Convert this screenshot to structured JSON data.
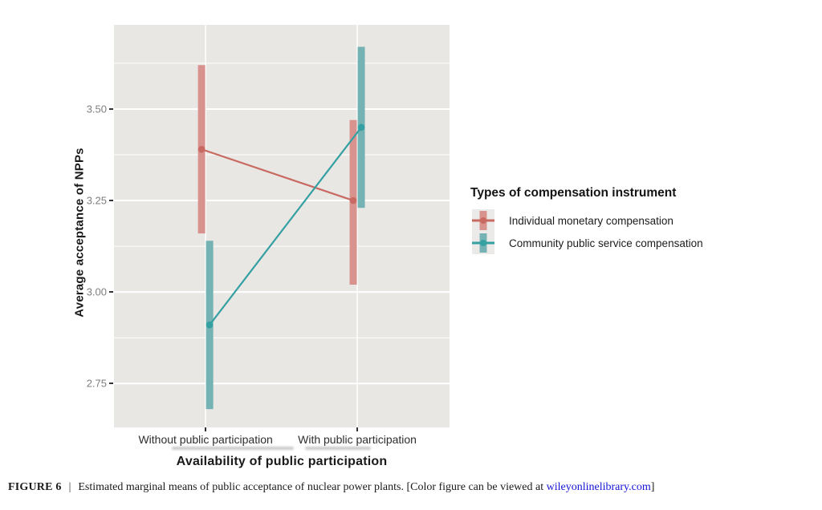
{
  "chart_data": {
    "type": "line",
    "subtype": "interaction-plot-with-error-bars",
    "categories": [
      "Without public participation",
      "With public participation"
    ],
    "series": [
      {
        "name": "Individual monetary compensation",
        "line_color": "#c96a62",
        "bar_color": "#d9938e",
        "means": [
          3.39,
          3.25
        ],
        "ci_low": [
          3.16,
          3.02
        ],
        "ci_high": [
          3.62,
          3.47
        ]
      },
      {
        "name": "Community public service compensation",
        "line_color": "#35a0a2",
        "bar_color": "#74b2b4",
        "means": [
          2.91,
          3.45
        ],
        "ci_low": [
          2.68,
          3.23
        ],
        "ci_high": [
          3.14,
          3.67
        ]
      }
    ],
    "title": "",
    "xlabel": "Availability of public participation",
    "ylabel": "Average acceptance of NPPs",
    "yticks": [
      2.75,
      3.0,
      3.25,
      3.5
    ],
    "yticks_minor": [
      2.875,
      3.125,
      3.375,
      3.625
    ],
    "ylim": [
      2.63,
      3.73
    ],
    "grid": true,
    "legend_title": "Types of compensation instrument",
    "legend_position": "right"
  },
  "ui_colors": {
    "panel_bg": "#e8e7e4",
    "grid": "#ffffff",
    "tick_mark": "#333333",
    "ytick_label": "#7e7e7e",
    "xtick_label": "#2e2e2e",
    "legend_key_bg": "#ebeae8",
    "link": "#1414d6"
  },
  "caption": {
    "label": "FIGURE 6",
    "separator": "|",
    "text_before_link": "Estimated marginal means of public acceptance of nuclear power plants. [Color figure can be viewed at ",
    "link_text": "wileyonlinelibrary.com",
    "text_after_link": "]"
  }
}
